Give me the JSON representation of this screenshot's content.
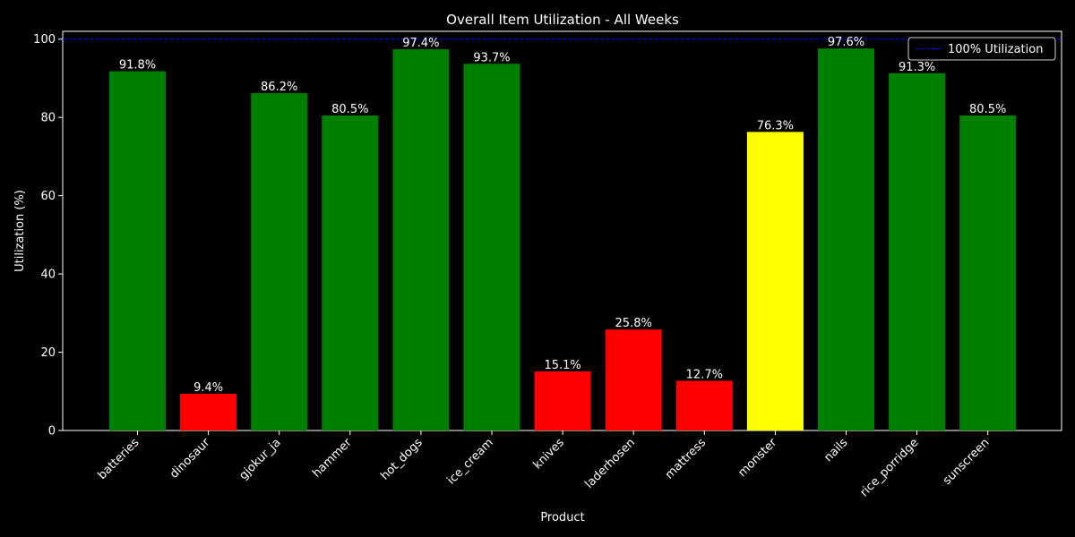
{
  "chart_data": {
    "type": "bar",
    "title": "Overall Item Utilization - All Weeks",
    "xlabel": "Product",
    "ylabel": "Utilization (%)",
    "ylim": [
      0,
      102
    ],
    "yticks": [
      0,
      20,
      40,
      60,
      80,
      100
    ],
    "categories": [
      "batteries",
      "dinosaur",
      "gjokur_ja",
      "hammer",
      "hot_dogs",
      "ice_cream",
      "knives",
      "laderhosen",
      "mattress",
      "monster",
      "nails",
      "rice_porridge",
      "sunscreen"
    ],
    "values": [
      91.8,
      9.4,
      86.2,
      80.5,
      97.4,
      93.7,
      15.1,
      25.8,
      12.7,
      76.3,
      97.6,
      91.3,
      80.5
    ],
    "value_labels": [
      "91.8%",
      "9.4%",
      "86.2%",
      "80.5%",
      "97.4%",
      "93.7%",
      "15.1%",
      "25.8%",
      "12.7%",
      "76.3%",
      "97.6%",
      "91.3%",
      "80.5%"
    ],
    "bar_colors": [
      "#008000",
      "#ff0000",
      "#008000",
      "#008000",
      "#008000",
      "#008000",
      "#ff0000",
      "#ff0000",
      "#ff0000",
      "#ffff00",
      "#008000",
      "#008000",
      "#008000"
    ],
    "reference_line": {
      "value": 100,
      "label": "100% Utilization",
      "color": "#0000ff",
      "style": "dashed"
    },
    "legend": {
      "placement": "top-right",
      "entries": [
        "100% Utilization"
      ]
    },
    "grid": false,
    "background": "#000000",
    "foreground": "#ffffff"
  }
}
